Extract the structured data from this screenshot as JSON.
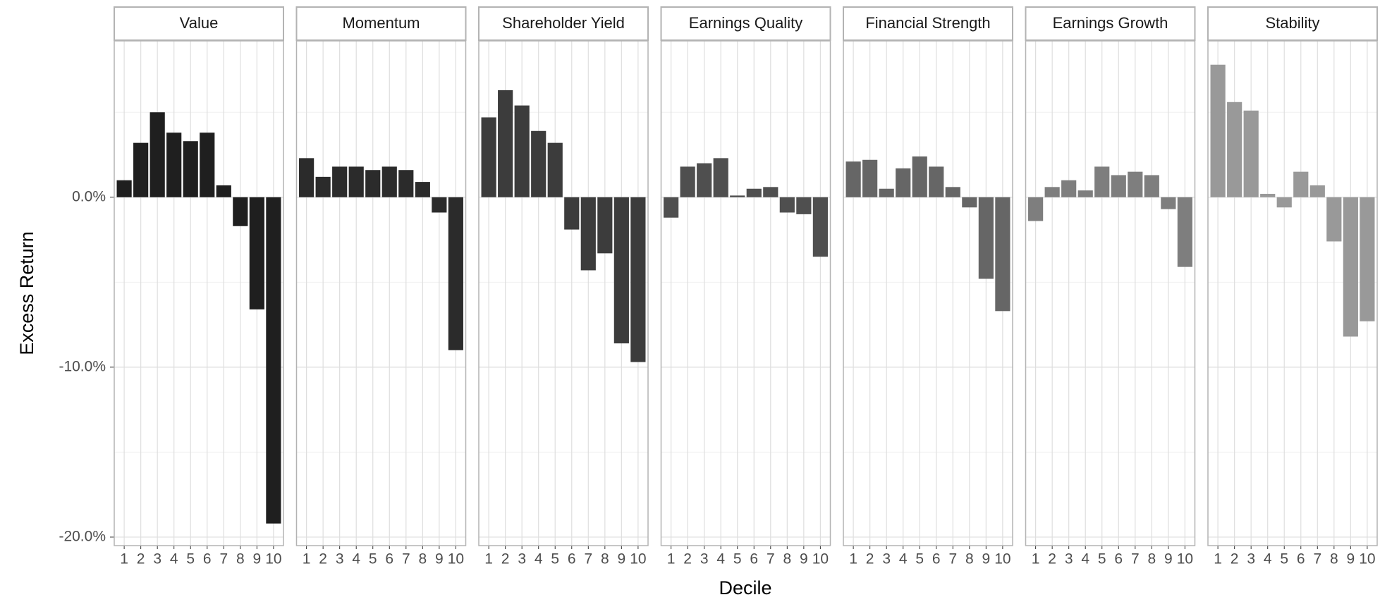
{
  "chart_data": {
    "type": "bar",
    "x_label": "Decile",
    "y_label": "Excess Return",
    "categories": [
      "1",
      "2",
      "3",
      "4",
      "5",
      "6",
      "7",
      "8",
      "9",
      "10"
    ],
    "ylim": [
      -20.5,
      9.2
    ],
    "yticks": [
      {
        "value": -20,
        "label": "-20.0%"
      },
      {
        "value": -10,
        "label": "-10.0%"
      },
      {
        "value": 0,
        "label": "0.0%"
      }
    ],
    "grid": true,
    "series": [
      {
        "name": "Value",
        "color": "#1f1f1f",
        "values": [
          1.0,
          3.2,
          5.0,
          3.8,
          3.3,
          3.8,
          0.7,
          -1.7,
          -6.6,
          -19.2
        ]
      },
      {
        "name": "Momentum",
        "color": "#2b2b2b",
        "values": [
          2.3,
          1.2,
          1.8,
          1.8,
          1.6,
          1.8,
          1.6,
          0.9,
          -0.9,
          -9.0
        ]
      },
      {
        "name": "Shareholder Yield",
        "color": "#3c3c3c",
        "values": [
          4.7,
          6.3,
          5.4,
          3.9,
          3.2,
          -1.9,
          -4.3,
          -3.3,
          -8.6,
          -9.7
        ]
      },
      {
        "name": "Earnings Quality",
        "color": "#4f4f4f",
        "values": [
          -1.2,
          1.8,
          2.0,
          2.3,
          0.1,
          0.5,
          0.6,
          -0.9,
          -1.0,
          -3.5
        ]
      },
      {
        "name": "Financial Strength",
        "color": "#666666",
        "values": [
          2.1,
          2.2,
          0.5,
          1.7,
          2.4,
          1.8,
          0.6,
          -0.6,
          -4.8,
          -6.7
        ]
      },
      {
        "name": "Earnings Growth",
        "color": "#7e7e7e",
        "values": [
          -1.4,
          0.6,
          1.0,
          0.4,
          1.8,
          1.3,
          1.5,
          1.3,
          -0.7,
          -4.1
        ]
      },
      {
        "name": "Stability",
        "color": "#999999",
        "values": [
          7.8,
          5.6,
          5.1,
          0.2,
          -0.6,
          1.5,
          0.7,
          -2.6,
          -8.2,
          -7.3
        ]
      }
    ]
  }
}
